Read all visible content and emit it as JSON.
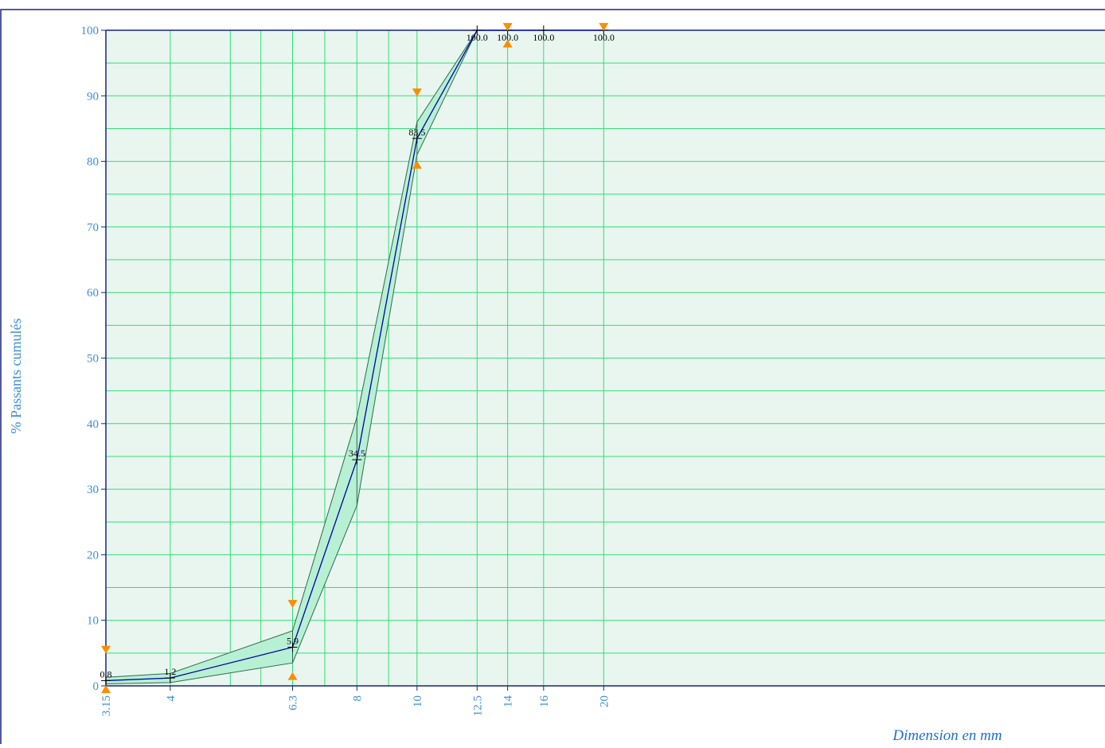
{
  "chart_data": {
    "type": "line",
    "title": "",
    "xlabel": "Dimension en mm",
    "ylabel": "% Passants cumulés",
    "x_scale": "log",
    "xlim": [
      3.15,
      20
    ],
    "ylim": [
      0,
      100
    ],
    "x_ticks": [
      3.15,
      4,
      6.3,
      8,
      10,
      12.5,
      14,
      16,
      20
    ],
    "x_tick_labels": [
      "3.15",
      "4",
      "6.3",
      "8",
      "10",
      "12.5",
      "14",
      "16",
      "20"
    ],
    "y_ticks": [
      0,
      10,
      20,
      30,
      40,
      50,
      60,
      70,
      80,
      90,
      100
    ],
    "y_tick_labels": [
      "0",
      "10",
      "20",
      "30",
      "40",
      "50",
      "60",
      "70",
      "80",
      "90",
      "100"
    ],
    "extra_vertical_grid": [
      5,
      5.6,
      7.1,
      9
    ],
    "grid": true,
    "series": [
      {
        "role": "curve",
        "x": [
          3.15,
          4,
          6.3,
          8,
          10,
          12.5,
          14,
          16,
          20
        ],
        "y": [
          0.8,
          1.2,
          5.9,
          34.5,
          83.5,
          100,
          100,
          100,
          100
        ],
        "labels": [
          "0.8",
          "1.2",
          "5.9",
          "34.5",
          "83.5",
          "100.0",
          "100.0",
          "100.0",
          "100.0"
        ]
      },
      {
        "role": "envelope-upper",
        "x": [
          3.15,
          4,
          6.3,
          8,
          10,
          12.5
        ],
        "y": [
          1.3,
          1.9,
          8.4,
          41.0,
          86.0,
          100
        ]
      },
      {
        "role": "envelope-lower",
        "x": [
          3.15,
          4,
          6.3,
          8,
          10,
          12.5
        ],
        "y": [
          0.3,
          0.5,
          3.5,
          27.5,
          81.0,
          100
        ]
      }
    ],
    "markers_upper": [
      {
        "x": 3.15,
        "y": 5.5
      },
      {
        "x": 6.3,
        "y": 12.5
      },
      {
        "x": 10,
        "y": 90.5
      },
      {
        "x": 14,
        "y": 100.5
      },
      {
        "x": 20,
        "y": 100.5
      }
    ],
    "markers_lower": [
      {
        "x": 3.15,
        "y": -0.5
      },
      {
        "x": 6.3,
        "y": 1.5
      },
      {
        "x": 10,
        "y": 79.5
      },
      {
        "x": 14,
        "y": 98
      }
    ],
    "colors": {
      "plot_bg": "#e8f6ef",
      "grid": "#33dd77",
      "axis": "#1a237e",
      "curve": "#0000aa",
      "envelope_fill": "#b8f0d4",
      "envelope_stroke": "#2e6b4e",
      "marker": "#ff8c00",
      "tick_text": "#3a8fd8",
      "xlabel_text": "#1e6fd0"
    }
  }
}
